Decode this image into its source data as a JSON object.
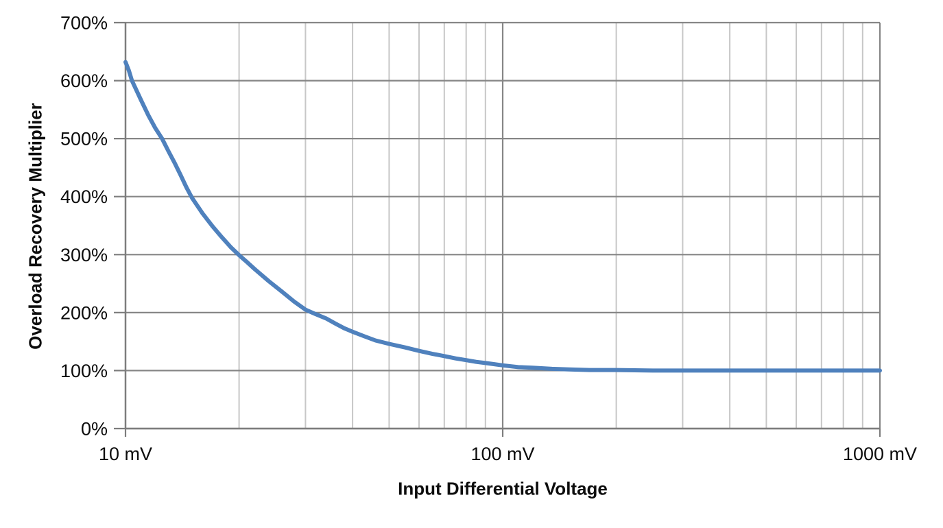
{
  "chart_data": {
    "type": "line",
    "title": "",
    "xlabel": "Input Differential Voltage",
    "ylabel": "Overload Recovery Multiplier",
    "x_scale": "log",
    "xlim": [
      10,
      1000
    ],
    "ylim": [
      0,
      700
    ],
    "grid": {
      "horizontal_major": true,
      "vertical_major": true,
      "vertical_minor": true,
      "legend": "none"
    },
    "x_ticks": [
      {
        "value": 10,
        "label": "10 mV"
      },
      {
        "value": 100,
        "label": "100 mV"
      },
      {
        "value": 1000,
        "label": "1000 mV"
      }
    ],
    "y_ticks": [
      {
        "value": 0,
        "label": "0%"
      },
      {
        "value": 100,
        "label": "100%"
      },
      {
        "value": 200,
        "label": "200%"
      },
      {
        "value": 300,
        "label": "300%"
      },
      {
        "value": 400,
        "label": "400%"
      },
      {
        "value": 500,
        "label": "500%"
      },
      {
        "value": 600,
        "label": "600%"
      },
      {
        "value": 700,
        "label": "700%"
      }
    ],
    "series": [
      {
        "name": "Overload Recovery Multiplier",
        "color": "#4f81bd",
        "points_mV_percent": [
          [
            10,
            632
          ],
          [
            10.2,
            618
          ],
          [
            10.4,
            600
          ],
          [
            11,
            566
          ],
          [
            11.5,
            540
          ],
          [
            12,
            518
          ],
          [
            12.5,
            500
          ],
          [
            13,
            478
          ],
          [
            13.5,
            458
          ],
          [
            14,
            437
          ],
          [
            14.5,
            416
          ],
          [
            15,
            398
          ],
          [
            16,
            371
          ],
          [
            17,
            349
          ],
          [
            18,
            330
          ],
          [
            19,
            313
          ],
          [
            20,
            299
          ],
          [
            21,
            287
          ],
          [
            22,
            275
          ],
          [
            24,
            254
          ],
          [
            26,
            236
          ],
          [
            28,
            219
          ],
          [
            30,
            205
          ],
          [
            32,
            197
          ],
          [
            34,
            190
          ],
          [
            36,
            181
          ],
          [
            38,
            173
          ],
          [
            40,
            167
          ],
          [
            43,
            159
          ],
          [
            46,
            152
          ],
          [
            50,
            146
          ],
          [
            55,
            140
          ],
          [
            60,
            134
          ],
          [
            65,
            129
          ],
          [
            70,
            125
          ],
          [
            75,
            121
          ],
          [
            80,
            118
          ],
          [
            85,
            115
          ],
          [
            90,
            113
          ],
          [
            95,
            111
          ],
          [
            100,
            109
          ],
          [
            110,
            106
          ],
          [
            120,
            105
          ],
          [
            135,
            103
          ],
          [
            150,
            102
          ],
          [
            170,
            101
          ],
          [
            200,
            101
          ],
          [
            250,
            100
          ],
          [
            300,
            100
          ],
          [
            400,
            100
          ],
          [
            500,
            100
          ],
          [
            650,
            100
          ],
          [
            800,
            100
          ],
          [
            1000,
            100
          ]
        ]
      }
    ],
    "colors": {
      "background": "#ffffff",
      "grid_major": "#868686",
      "grid_minor": "#c7c7c7",
      "axis": "#7d7d7d",
      "text": "#0d0d0d"
    }
  }
}
